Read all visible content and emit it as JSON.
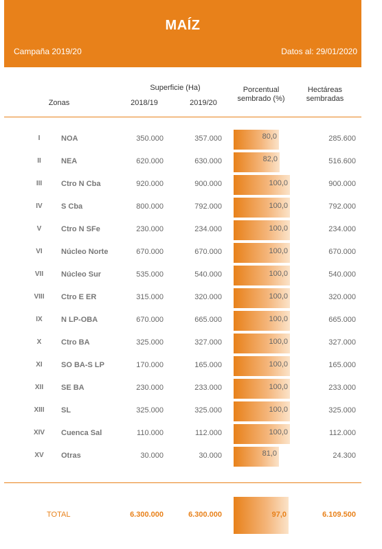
{
  "header": {
    "title": "MAÍZ",
    "campaign": "Campaña 2019/20",
    "date": "Datos al: 29/01/2020"
  },
  "columns": {
    "zonas": "Zonas",
    "superficie": "Superficie (Ha)",
    "y1": "2018/19",
    "y2": "2019/20",
    "porcentual_1": "Porcentual",
    "porcentual_2": "sembrado (%)",
    "hectareas_1": "Hectáreas",
    "hectareas_2": "sembradas"
  },
  "rows": [
    {
      "num": "I",
      "zone": "NOA",
      "y1": "350.000",
      "y2": "357.000",
      "pct": "80,0",
      "pct_value": 80.0,
      "sown": "285.600"
    },
    {
      "num": "II",
      "zone": "NEA",
      "y1": "620.000",
      "y2": "630.000",
      "pct": "82,0",
      "pct_value": 82.0,
      "sown": "516.600"
    },
    {
      "num": "III",
      "zone": "Ctro N Cba",
      "y1": "920.000",
      "y2": "900.000",
      "pct": "100,0",
      "pct_value": 100.0,
      "sown": "900.000"
    },
    {
      "num": "IV",
      "zone": "S Cba",
      "y1": "800.000",
      "y2": "792.000",
      "pct": "100,0",
      "pct_value": 100.0,
      "sown": "792.000"
    },
    {
      "num": "V",
      "zone": "Ctro N SFe",
      "y1": "230.000",
      "y2": "234.000",
      "pct": "100,0",
      "pct_value": 100.0,
      "sown": "234.000"
    },
    {
      "num": "VI",
      "zone": "Núcleo Norte",
      "y1": "670.000",
      "y2": "670.000",
      "pct": "100,0",
      "pct_value": 100.0,
      "sown": "670.000"
    },
    {
      "num": "VII",
      "zone": "Núcleo Sur",
      "y1": "535.000",
      "y2": "540.000",
      "pct": "100,0",
      "pct_value": 100.0,
      "sown": "540.000"
    },
    {
      "num": "VIII",
      "zone": "Ctro E ER",
      "y1": "315.000",
      "y2": "320.000",
      "pct": "100,0",
      "pct_value": 100.0,
      "sown": "320.000"
    },
    {
      "num": "IX",
      "zone": "N LP-OBA",
      "y1": "670.000",
      "y2": "665.000",
      "pct": "100,0",
      "pct_value": 100.0,
      "sown": "665.000"
    },
    {
      "num": "X",
      "zone": "Ctro BA",
      "y1": "325.000",
      "y2": "327.000",
      "pct": "100,0",
      "pct_value": 100.0,
      "sown": "327.000"
    },
    {
      "num": "XI",
      "zone": "SO BA-S LP",
      "y1": "170.000",
      "y2": "165.000",
      "pct": "100,0",
      "pct_value": 100.0,
      "sown": "165.000"
    },
    {
      "num": "XII",
      "zone": "SE BA",
      "y1": "230.000",
      "y2": "233.000",
      "pct": "100,0",
      "pct_value": 100.0,
      "sown": "233.000"
    },
    {
      "num": "XIII",
      "zone": "SL",
      "y1": "325.000",
      "y2": "325.000",
      "pct": "100,0",
      "pct_value": 100.0,
      "sown": "325.000"
    },
    {
      "num": "XIV",
      "zone": "Cuenca Sal",
      "y1": "110.000",
      "y2": "112.000",
      "pct": "100,0",
      "pct_value": 100.0,
      "sown": "112.000"
    },
    {
      "num": "XV",
      "zone": "Otras",
      "y1": "30.000",
      "y2": "30.000",
      "pct": "81,0",
      "pct_value": 81.0,
      "sown": "24.300"
    }
  ],
  "total": {
    "label": "TOTAL",
    "y1": "6.300.000",
    "y2": "6.300.000",
    "pct": "97,0",
    "pct_value": 97.0,
    "sown": "6.109.500"
  },
  "colors": {
    "accent": "#e8811a"
  }
}
